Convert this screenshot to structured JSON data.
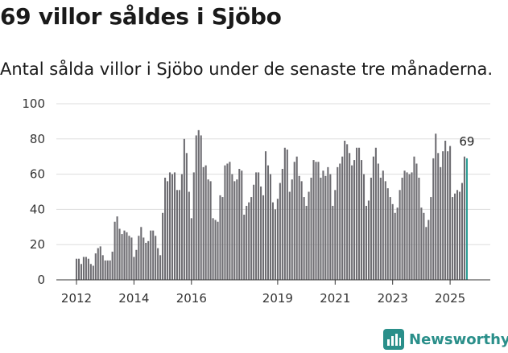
{
  "header": {
    "title": "69 villor såldes i Sjöbo",
    "subtitle": "Antal sålda villor i Sjöbo under de senaste tre månaderna."
  },
  "brand": {
    "name": "Newsworthy",
    "color": "#2a8f8a"
  },
  "colors": {
    "bar": "#6e6d72",
    "highlight": "#2a9d94",
    "grid": "#dddddd",
    "axis": "#333333"
  },
  "chart_data": {
    "type": "bar",
    "title": "69 villor såldes i Sjöbo",
    "subtitle": "Antal sålda villor i Sjöbo under de senaste tre månaderna.",
    "xlabel": "",
    "ylabel": "",
    "ylim": [
      0,
      100
    ],
    "yticks": [
      0,
      20,
      40,
      60,
      80,
      100
    ],
    "xticks": [
      "2012",
      "2014",
      "2016",
      "2019",
      "2021",
      "2023",
      "2025"
    ],
    "grid": true,
    "x_start": "2012-01",
    "x_end": "2025-06",
    "highlight_label": "69",
    "series": [
      {
        "values": [
          12,
          12,
          9,
          13,
          13,
          12,
          9,
          8,
          15,
          18,
          19,
          14,
          11,
          11,
          11,
          16,
          33,
          36,
          29,
          26,
          28,
          27,
          25,
          24,
          13,
          17,
          25,
          30,
          24,
          21,
          22,
          28,
          28,
          25,
          18,
          14,
          38,
          58,
          56,
          61,
          60,
          61,
          51,
          51,
          60,
          80,
          72,
          50,
          35,
          61,
          82,
          85,
          82,
          64,
          65,
          57,
          56,
          35,
          34,
          33,
          48,
          47,
          65,
          66,
          67,
          60,
          56,
          57,
          63,
          62,
          37,
          42,
          44,
          47,
          54,
          61,
          61,
          53,
          48,
          73,
          65,
          60,
          44,
          40,
          46,
          55,
          63,
          75,
          74,
          50,
          57,
          67,
          70,
          59,
          56,
          47,
          42,
          50,
          58,
          68,
          67,
          67,
          58,
          62,
          59,
          64,
          60,
          42,
          51,
          64,
          66,
          70,
          79,
          77,
          72,
          65,
          68,
          75,
          75,
          68,
          60,
          42,
          45,
          58,
          70,
          75,
          66,
          58,
          62,
          56,
          52,
          47,
          43,
          38,
          41,
          51,
          58,
          62,
          61,
          60,
          61,
          70,
          66,
          58,
          41,
          38,
          30,
          34,
          47,
          69,
          83,
          72,
          64,
          73,
          79,
          73,
          76,
          47,
          49,
          51,
          50,
          55,
          70,
          69
        ]
      }
    ]
  }
}
